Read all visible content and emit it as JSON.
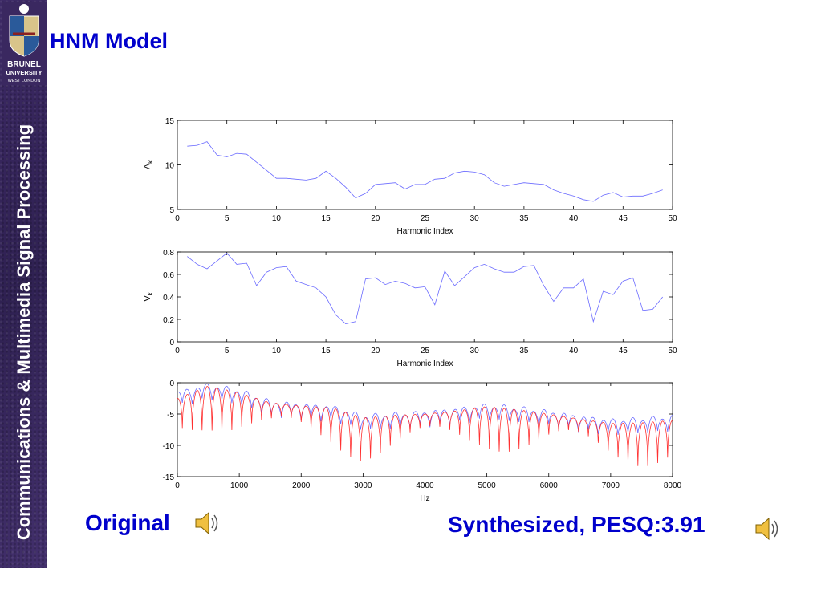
{
  "title": "HNM Model",
  "sidebar": {
    "text": "Communications & Multimedia Signal Processing"
  },
  "logo": {
    "name": "brunel-university-logo",
    "lines": [
      "BRUNEL",
      "UNIVERSITY",
      "WEST LONDON"
    ]
  },
  "captions": {
    "original": "Original",
    "synthesized": "Synthesized, PESQ:3.91"
  },
  "icons": {
    "speaker": "speaker-icon"
  },
  "colors": {
    "title": "#0000cc",
    "sidebar": "#3a2860",
    "series_blue": "#6b6bff",
    "series_red": "#ff3030"
  },
  "chart_data": [
    {
      "type": "line",
      "xlabel": "Harmonic Index",
      "ylabel": "A_k",
      "xlim": [
        0,
        50
      ],
      "ylim": [
        5,
        15
      ],
      "xticks": [
        0,
        5,
        10,
        15,
        20,
        25,
        30,
        35,
        40,
        45,
        50
      ],
      "yticks": [
        5,
        10,
        15
      ],
      "grid": false,
      "series": [
        {
          "color": "#6b6bff",
          "x": [
            1,
            2,
            3,
            4,
            5,
            6,
            7,
            8,
            9,
            10,
            11,
            12,
            13,
            14,
            15,
            16,
            17,
            18,
            19,
            20,
            21,
            22,
            23,
            24,
            25,
            26,
            27,
            28,
            29,
            30,
            31,
            32,
            33,
            34,
            35,
            36,
            37,
            38,
            39,
            40,
            41,
            42,
            43,
            44,
            45,
            46,
            47,
            48,
            49
          ],
          "y": [
            12.1,
            12.2,
            12.6,
            11.1,
            10.9,
            11.3,
            11.2,
            10.3,
            9.4,
            8.5,
            8.5,
            8.4,
            8.3,
            8.5,
            9.3,
            8.5,
            7.5,
            6.3,
            6.8,
            7.8,
            7.9,
            8.0,
            7.3,
            7.8,
            7.8,
            8.4,
            8.5,
            9.1,
            9.3,
            9.2,
            8.9,
            8.0,
            7.6,
            7.8,
            8.0,
            7.9,
            7.8,
            7.2,
            6.8,
            6.5,
            6.1,
            5.9,
            6.6,
            6.9,
            6.4,
            6.5,
            6.5,
            6.8,
            7.2
          ]
        }
      ]
    },
    {
      "type": "line",
      "xlabel": "Harmonic Index",
      "ylabel": "V_k",
      "xlim": [
        0,
        50
      ],
      "ylim": [
        0,
        0.8
      ],
      "xticks": [
        0,
        5,
        10,
        15,
        20,
        25,
        30,
        35,
        40,
        45,
        50
      ],
      "yticks": [
        0,
        0.2,
        0.4,
        0.6,
        0.8
      ],
      "grid": false,
      "series": [
        {
          "color": "#6b6bff",
          "x": [
            1,
            2,
            3,
            4,
            5,
            6,
            7,
            8,
            9,
            10,
            11,
            12,
            13,
            14,
            15,
            16,
            17,
            18,
            19,
            20,
            21,
            22,
            23,
            24,
            25,
            26,
            27,
            28,
            29,
            30,
            31,
            32,
            33,
            34,
            35,
            36,
            37,
            38,
            39,
            40,
            41,
            42,
            43,
            44,
            45,
            46,
            47,
            48,
            49
          ],
          "y": [
            0.76,
            0.69,
            0.65,
            0.72,
            0.79,
            0.69,
            0.7,
            0.5,
            0.62,
            0.66,
            0.67,
            0.54,
            0.51,
            0.48,
            0.4,
            0.24,
            0.16,
            0.18,
            0.56,
            0.57,
            0.51,
            0.54,
            0.52,
            0.48,
            0.49,
            0.33,
            0.63,
            0.5,
            0.58,
            0.66,
            0.69,
            0.65,
            0.62,
            0.62,
            0.67,
            0.68,
            0.5,
            0.36,
            0.48,
            0.48,
            0.56,
            0.18,
            0.45,
            0.42,
            0.54,
            0.57,
            0.28,
            0.29,
            0.4
          ]
        }
      ]
    },
    {
      "type": "line",
      "xlabel": "Hz",
      "ylabel": "",
      "xlim": [
        0,
        8000
      ],
      "ylim": [
        -15,
        0
      ],
      "xticks": [
        0,
        1000,
        2000,
        3000,
        4000,
        5000,
        6000,
        7000,
        8000
      ],
      "yticks": [
        -15,
        -10,
        -5,
        0
      ],
      "grid": false,
      "series": [
        {
          "color": "#6b6bff",
          "style": "harmonic-envelope",
          "f0": 160,
          "env_x": [
            0,
            500,
            1000,
            1500,
            2000,
            2500,
            3000,
            3500,
            4000,
            4500,
            5000,
            5500,
            6000,
            6500,
            7000,
            7500,
            8000
          ],
          "env_y": [
            -1.5,
            -0.3,
            -1.2,
            -3.0,
            -3.5,
            -3.8,
            -5.3,
            -5.0,
            -4.7,
            -4.2,
            -3.6,
            -4.0,
            -4.6,
            -5.4,
            -6.0,
            -5.8,
            -5.4
          ]
        },
        {
          "color": "#ff3030",
          "style": "harmonic-envelope-deep",
          "f0": 160,
          "env_x": [
            0,
            500,
            1000,
            1500,
            2000,
            2500,
            3000,
            3500,
            4000,
            4500,
            5000,
            5500,
            6000,
            6500,
            7000,
            7500,
            8000
          ],
          "env_y": [
            -2.5,
            -0.5,
            -1.6,
            -3.2,
            -3.7,
            -4.0,
            -5.6,
            -5.2,
            -5.0,
            -4.5,
            -3.8,
            -4.3,
            -5.0,
            -5.8,
            -6.5,
            -6.4,
            -6.0
          ]
        }
      ]
    }
  ]
}
